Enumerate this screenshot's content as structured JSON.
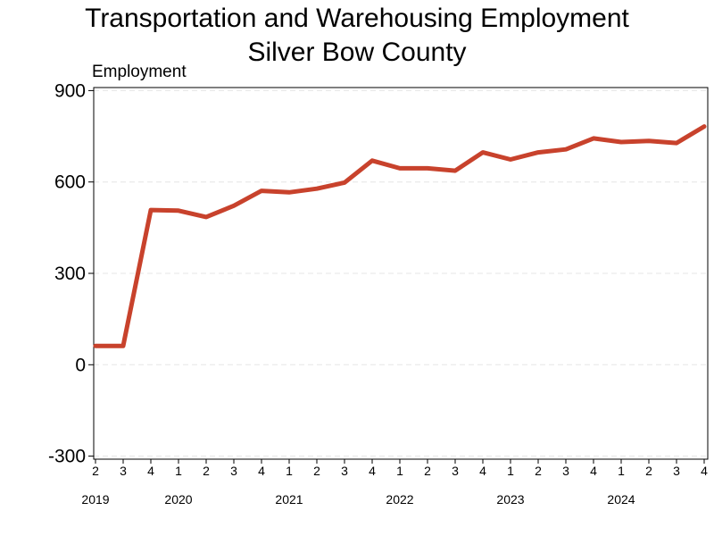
{
  "chart_data": {
    "type": "line",
    "title": "Transportation and Warehousing Employment",
    "subtitle": "Silver Bow County",
    "ylabel": "Employment",
    "xlabel": "",
    "ylim": [
      -310,
      910
    ],
    "yticks": [
      -300,
      0,
      300,
      600,
      900
    ],
    "x_quarter_labels": [
      "2",
      "3",
      "4",
      "1",
      "2",
      "3",
      "4",
      "1",
      "2",
      "3",
      "4",
      "1",
      "2",
      "3",
      "4",
      "1",
      "2",
      "3",
      "4",
      "1",
      "2",
      "3",
      "4"
    ],
    "x_year_labels": [
      {
        "label": "2019",
        "index": 0
      },
      {
        "label": "2020",
        "index": 3
      },
      {
        "label": "2021",
        "index": 7
      },
      {
        "label": "2022",
        "index": 11
      },
      {
        "label": "2023",
        "index": 15
      },
      {
        "label": "2024",
        "index": 19
      }
    ],
    "series": [
      {
        "color": "#c8422c",
        "values": [
          62,
          62,
          508,
          506,
          485,
          522,
          571,
          566,
          578,
          598,
          670,
          645,
          645,
          637,
          697,
          674,
          697,
          707,
          743,
          731,
          735,
          728,
          782
        ]
      }
    ],
    "grid": "horizontal-dashed",
    "legend": "none"
  }
}
